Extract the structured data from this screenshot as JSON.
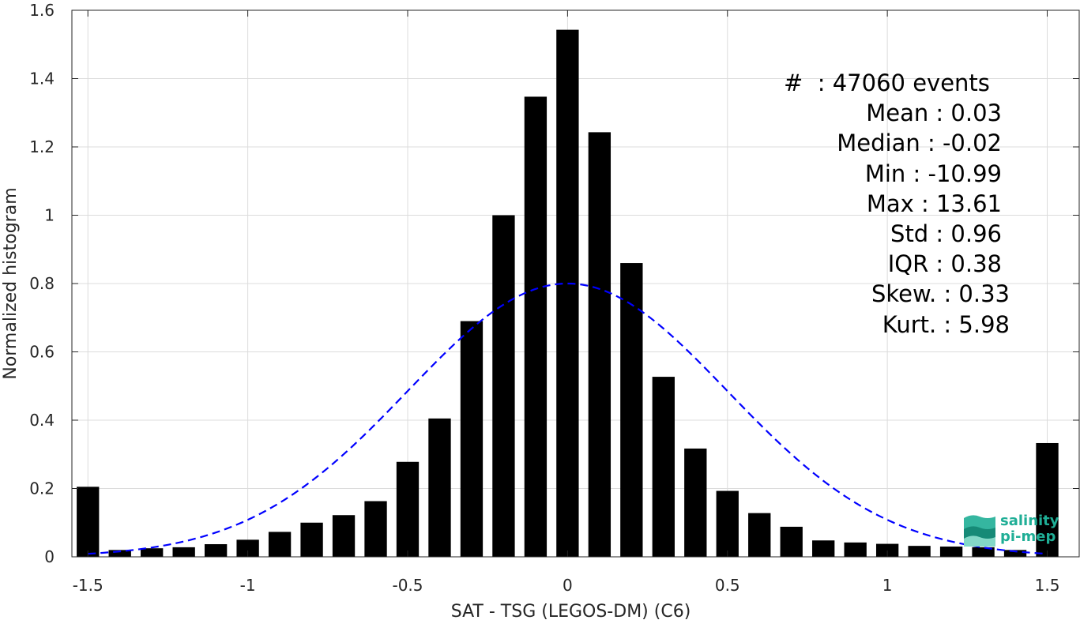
{
  "chart_data": {
    "type": "bar",
    "title": "",
    "xlabel": "SAT - TSG (LEGOS-DM) (C6)",
    "ylabel": "Normalized histogram",
    "xlim": [
      -1.55,
      1.6
    ],
    "ylim": [
      0,
      1.6
    ],
    "grid": true,
    "x_ticks": [
      -1.5,
      -1,
      -0.5,
      0,
      0.5,
      1,
      1.5
    ],
    "x_tick_labels": [
      "-1.5",
      "-1",
      "-0.5",
      "0",
      "0.5",
      "1",
      "1.5"
    ],
    "y_ticks": [
      0,
      0.2,
      0.4,
      0.6,
      0.8,
      1.0,
      1.2,
      1.4,
      1.6
    ],
    "y_tick_labels": [
      "0",
      "0.2",
      "0.4",
      "0.6",
      "0.8",
      "1",
      "1.2",
      "1.4",
      "1.6"
    ],
    "bar_width": 0.07,
    "x": [
      -1.5,
      -1.4,
      -1.3,
      -1.2,
      -1.1,
      -1.0,
      -0.9,
      -0.8,
      -0.7,
      -0.6,
      -0.5,
      -0.4,
      -0.3,
      -0.2,
      -0.1,
      0.0,
      0.1,
      0.2,
      0.3,
      0.4,
      0.5,
      0.6,
      0.7,
      0.8,
      0.9,
      1.0,
      1.1,
      1.2,
      1.3,
      1.4,
      1.5
    ],
    "values": [
      0.205,
      0.02,
      0.025,
      0.028,
      0.037,
      0.05,
      0.073,
      0.1,
      0.122,
      0.163,
      0.278,
      0.405,
      0.69,
      1.0,
      1.347,
      1.543,
      1.243,
      0.86,
      0.527,
      0.317,
      0.193,
      0.128,
      0.088,
      0.048,
      0.042,
      0.038,
      0.032,
      0.03,
      0.028,
      0.02,
      0.333
    ],
    "bar_color": "#000000",
    "fit_curve": {
      "type": "normal",
      "mean": 0.0,
      "std": 0.5,
      "peak": 0.8,
      "x_range": [
        -1.5,
        1.5
      ],
      "color": "#0000ff",
      "style": "dashed"
    }
  },
  "stats": {
    "count": "#  : 47060 events",
    "mean": "Mean : 0.03",
    "median": "Median : -0.02",
    "min": "Min : -10.99",
    "max": "Max : 13.61",
    "std": "Std : 0.96",
    "iqr": "IQR : 0.38",
    "skew": "Skew. : 0.33",
    "kurt": "Kurt. : 5.98"
  },
  "logo": {
    "line1": "salinity",
    "line2": "pi-mep",
    "color": "#1fae96"
  }
}
